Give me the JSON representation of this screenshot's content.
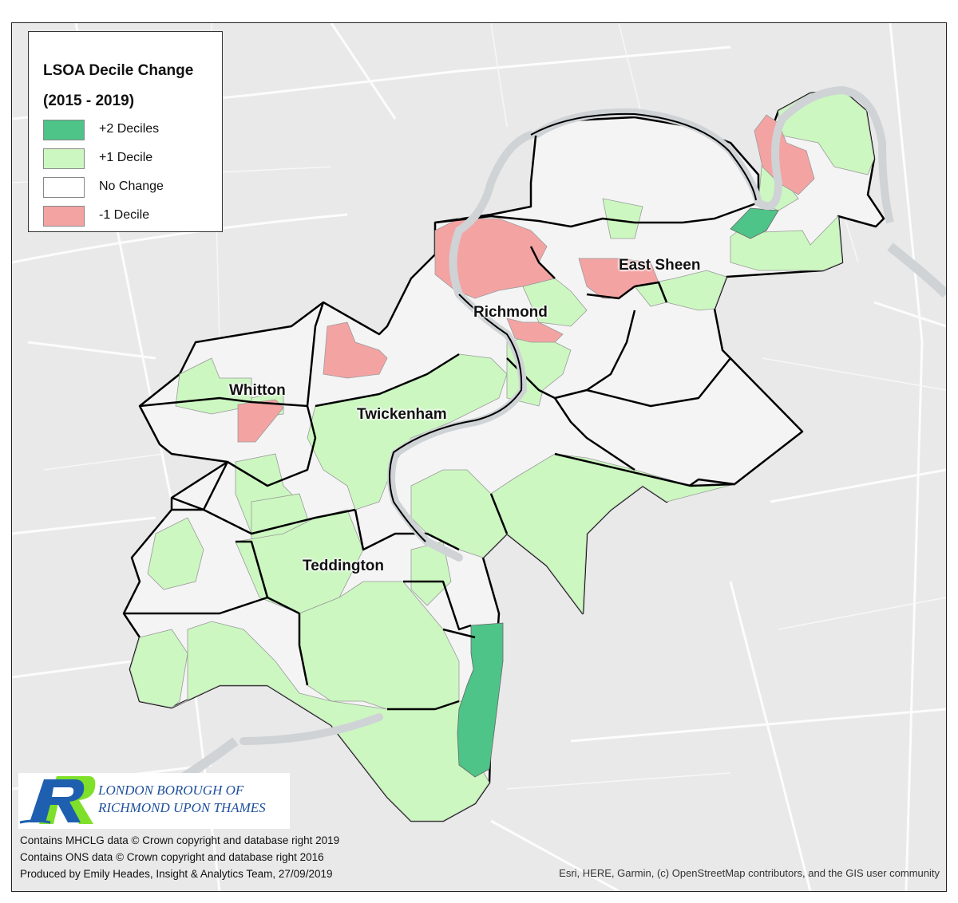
{
  "legend": {
    "title": "LSOA Decile Change",
    "subtitle": "(2015 - 2019)",
    "items": [
      {
        "label": "+2 Deciles",
        "color": "#4ec488"
      },
      {
        "label": "+1 Decile",
        "color": "#ccf7c1"
      },
      {
        "label": "No Change",
        "color": "#ffffff"
      },
      {
        "label": "-1 Decile",
        "color": "#f4a3a3"
      }
    ]
  },
  "places": {
    "east_sheen": "East Sheen",
    "richmond": "Richmond",
    "whitton": "Whitton",
    "twickenham": "Twickenham",
    "teddington": "Teddington"
  },
  "logo": {
    "line1": "LONDON BOROUGH OF",
    "line2": "RICHMOND UPON THAMES"
  },
  "credits": {
    "line1": "Contains MHCLG data © Crown copyright and database right 2019",
    "line2": "Contains ONS data © Crown copyright and database right 2016",
    "line3": "Produced by Emily Heades, Insight & Analytics Team, 27/09/2019"
  },
  "attribution": "Esri, HERE, Garmin, (c) OpenStreetMap contributors, and the GIS user community",
  "colors": {
    "basemap": "#e9e9e9",
    "river": "#cfd3d6",
    "boundary": "#000000",
    "no_change": "#f4f4f4"
  }
}
